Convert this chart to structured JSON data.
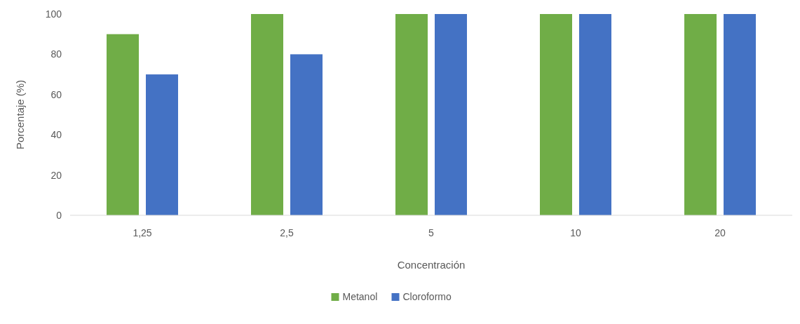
{
  "chart_data": {
    "type": "bar",
    "xlabel": "Concentración",
    "ylabel": "Porcentaje (%)",
    "categories": [
      "1,25",
      "2,5",
      "5",
      "10",
      "20"
    ],
    "series": [
      {
        "name": "Metanol",
        "color": "#70ad47",
        "values": [
          90,
          100,
          100,
          100,
          100
        ]
      },
      {
        "name": "Cloroformo",
        "color": "#4472c4",
        "values": [
          70,
          80,
          100,
          100,
          100
        ]
      }
    ],
    "ylim": [
      0,
      100
    ],
    "yticks": [
      0,
      20,
      40,
      60,
      80,
      100
    ],
    "grid": false,
    "legend": "bottom"
  }
}
